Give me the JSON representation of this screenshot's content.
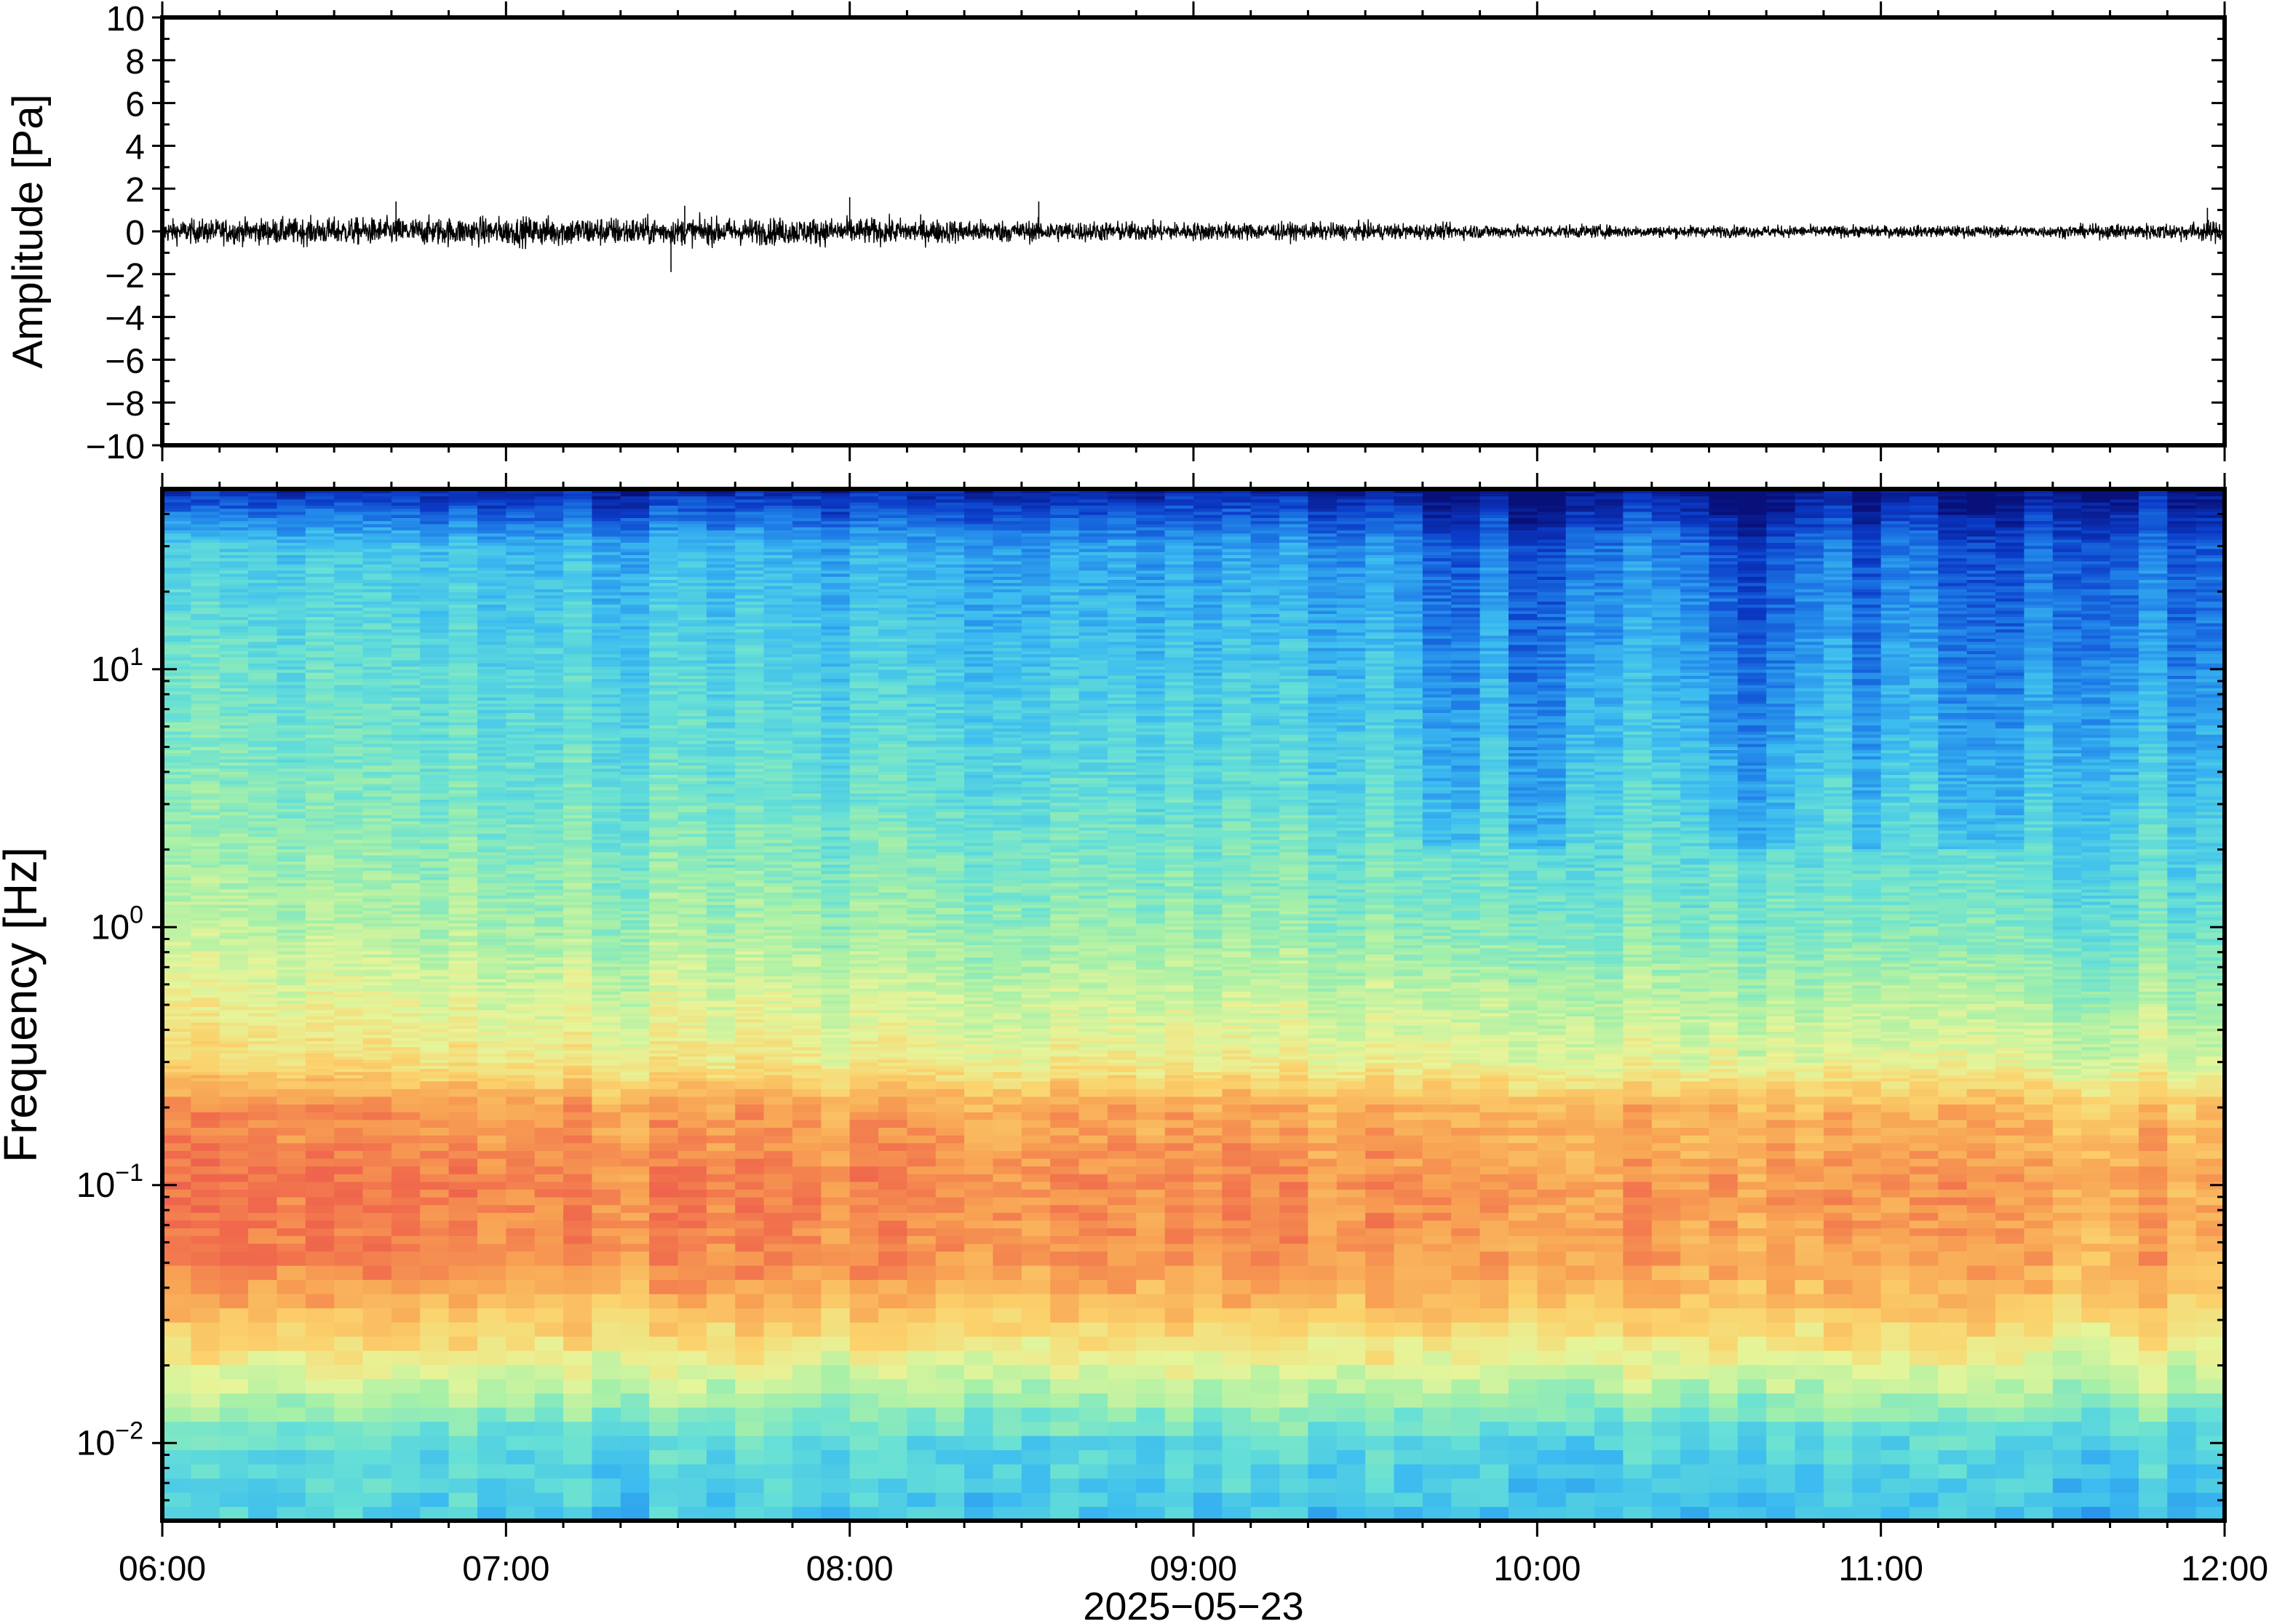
{
  "chart_data": [
    {
      "type": "line",
      "panel": "waveform",
      "ylabel": "Amplitude [Pa]",
      "ylim": [
        -10,
        10
      ],
      "yticks": [
        10,
        8,
        6,
        4,
        2,
        0,
        -2,
        -4,
        -6,
        -8,
        -10
      ],
      "ytick_labels": [
        "10",
        "8",
        "6",
        "4",
        "2",
        "0",
        "−2",
        "−4",
        "−6",
        "−8",
        "−10"
      ],
      "x_start": "06:00",
      "x_end": "12:00",
      "envelope_hours": [
        6.0,
        6.5,
        7.0,
        7.2,
        7.5,
        8.0,
        8.5,
        9.0,
        9.5,
        10.0,
        10.5,
        11.0,
        11.5,
        11.9,
        12.0
      ],
      "envelope_amplitude": [
        0.7,
        0.8,
        0.85,
        0.9,
        0.8,
        0.8,
        0.65,
        0.55,
        0.5,
        0.4,
        0.35,
        0.35,
        0.35,
        0.55,
        0.7
      ],
      "peaks": [
        {
          "hour": 7.48,
          "value": -1.9
        },
        {
          "hour": 7.52,
          "value": 1.2
        },
        {
          "hour": 8.0,
          "value": 1.6
        },
        {
          "hour": 8.55,
          "value": 1.4
        },
        {
          "hour": 6.68,
          "value": 1.4
        },
        {
          "hour": 11.95,
          "value": 1.1
        }
      ],
      "grid": false
    },
    {
      "type": "heatmap",
      "panel": "spectrogram",
      "ylabel": "Frequency [Hz]",
      "yscale": "log",
      "ylim": [
        0.005,
        50
      ],
      "yticks": [
        0.01,
        0.1,
        1,
        10
      ],
      "ytick_labels": [
        {
          "base": "10",
          "exp": "−2"
        },
        {
          "base": "10",
          "exp": "−1"
        },
        {
          "base": "10",
          "exp": "0"
        },
        {
          "base": "10",
          "exp": "1"
        }
      ],
      "xlabel": "2025−05−23",
      "xticks": [
        "06:00",
        "07:00",
        "08:00",
        "09:00",
        "10:00",
        "11:00",
        "12:00"
      ],
      "colormap": "rainbow (blue = low power, red = high power)",
      "power_profile_by_frequency": {
        "freq_hz": [
          0.005,
          0.01,
          0.02,
          0.03,
          0.05,
          0.1,
          0.2,
          0.3,
          1,
          3,
          10,
          30,
          50
        ],
        "relative_power_early": [
          0.34,
          0.38,
          0.6,
          0.72,
          0.85,
          0.87,
          0.82,
          0.66,
          0.52,
          0.44,
          0.4,
          0.33,
          0.05
        ],
        "relative_power_late": [
          0.3,
          0.36,
          0.58,
          0.7,
          0.78,
          0.8,
          0.74,
          0.58,
          0.42,
          0.34,
          0.24,
          0.16,
          0.03
        ]
      },
      "darker_high_freq_columns_hours": [
        9.75,
        10.0,
        10.55,
        10.65,
        10.95,
        11.25,
        11.35
      ]
    }
  ],
  "colors": {
    "frame": "#000000",
    "trace": "#000000",
    "colormap_stops": [
      "#08107a",
      "#0b3bc8",
      "#1f7fe8",
      "#3cbcf0",
      "#66e0d6",
      "#a6f0a8",
      "#e6f59a",
      "#fbd26c",
      "#f8a454",
      "#f06a4c",
      "#e8564e"
    ]
  }
}
